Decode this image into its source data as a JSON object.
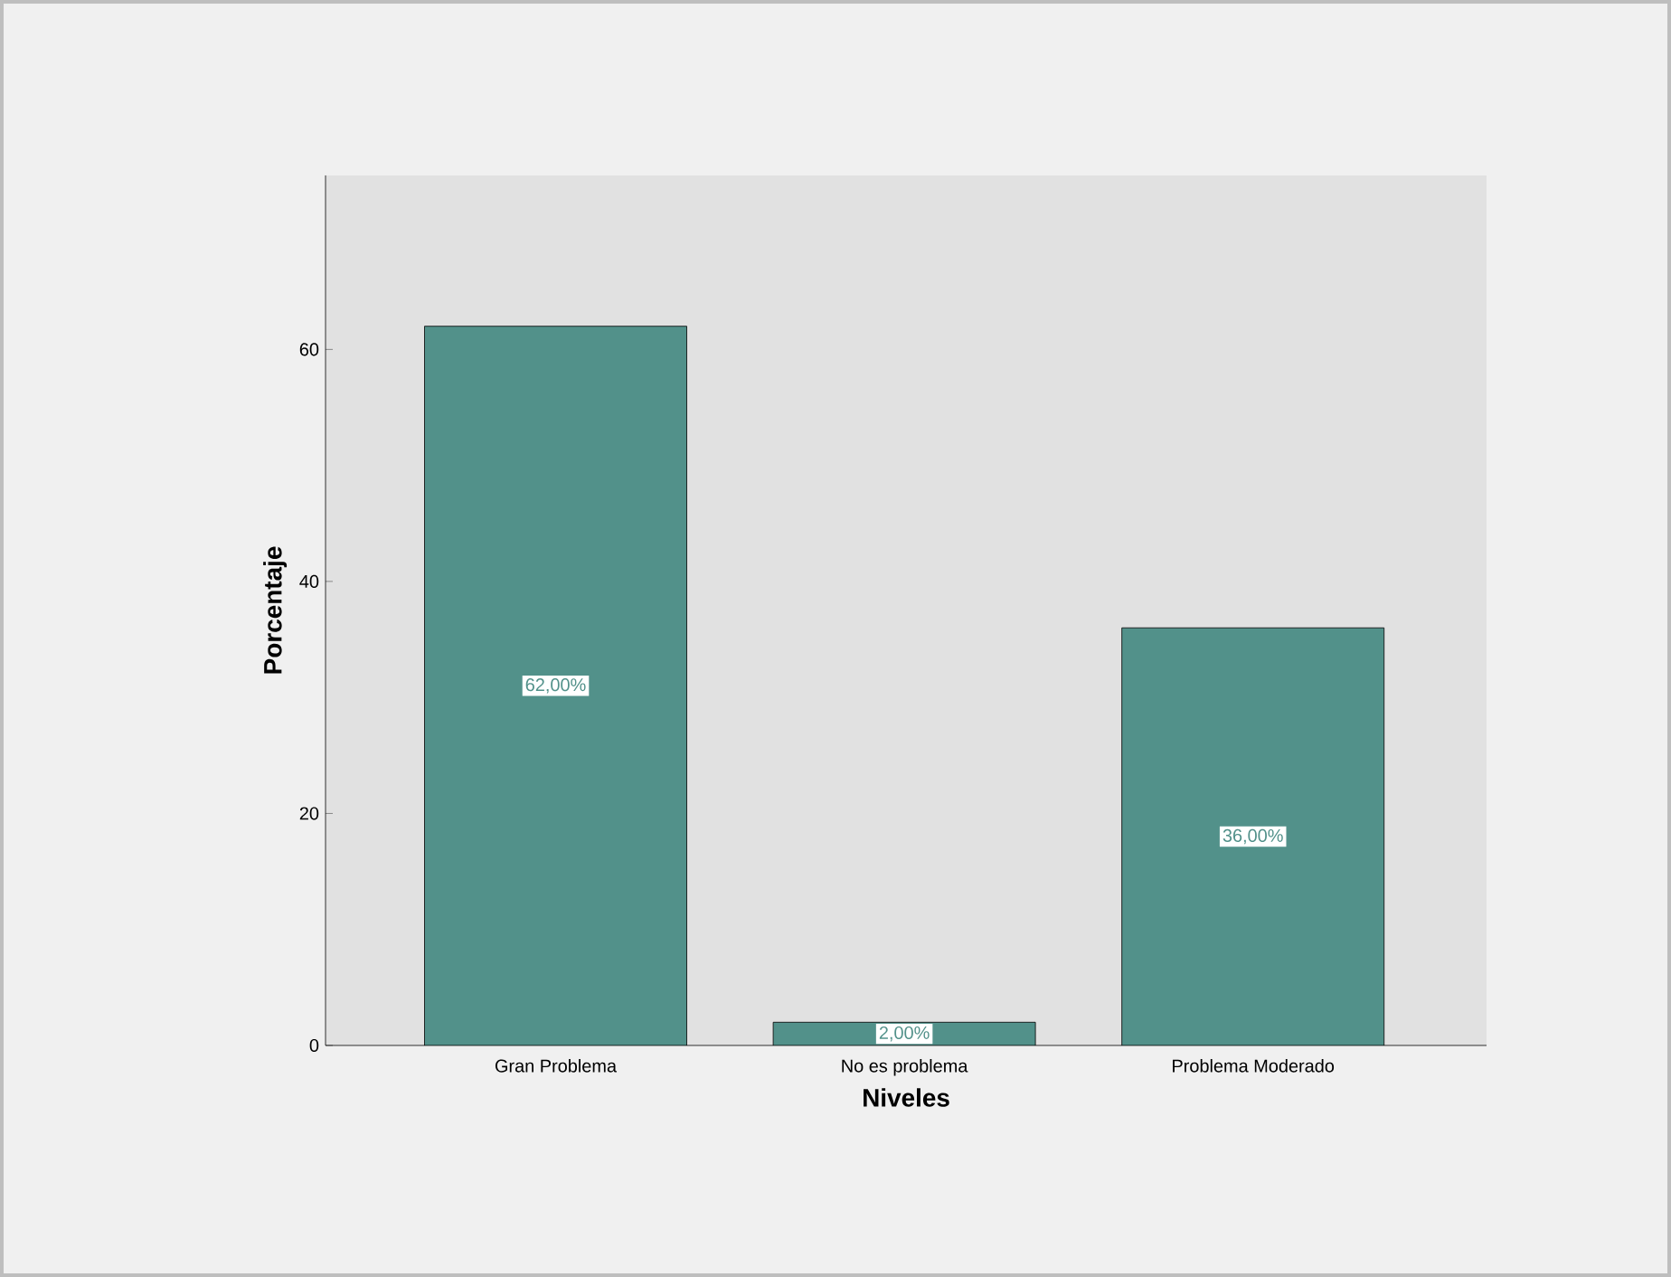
{
  "chart_data": {
    "type": "bar",
    "xlabel": "Niveles",
    "ylabel": "Porcentaje",
    "categories": [
      "Gran Problema",
      "No es problema",
      "Problema Moderado"
    ],
    "values": [
      62,
      2,
      36
    ],
    "value_labels": [
      "62,00%",
      "2,00%",
      "36,00%"
    ],
    "color": "#52918a",
    "ylim": [
      0,
      75
    ],
    "yticks": [
      0,
      20,
      40,
      60
    ],
    "grid": false
  }
}
